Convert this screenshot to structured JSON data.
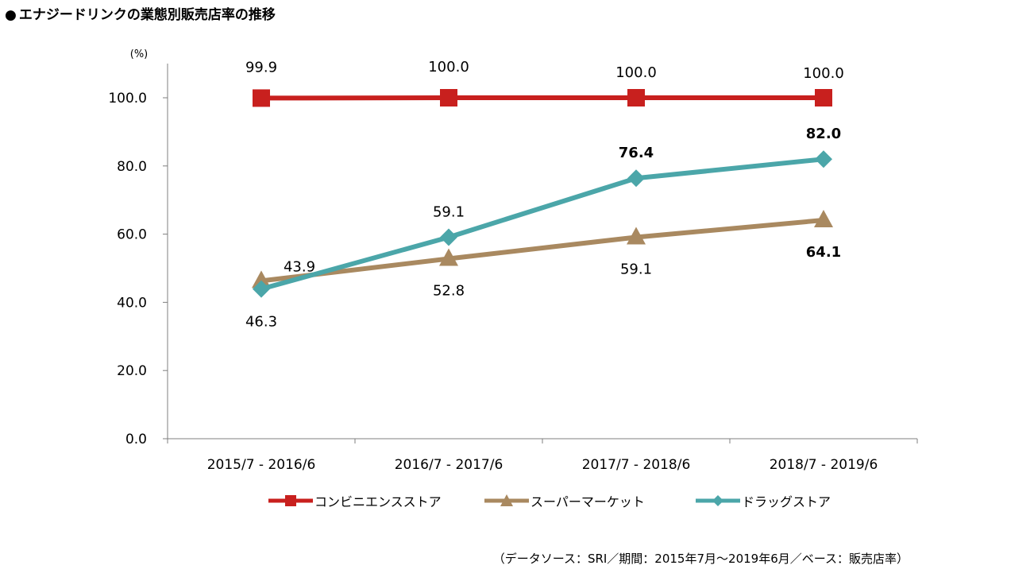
{
  "header": {
    "bullet": "●",
    "title": "エナジードリンクの業態別販売店率の推移"
  },
  "chart_data": {
    "type": "line",
    "title": "エナジードリンクの業態別販売店率の推移",
    "ylabel": "(%)",
    "xlabel": "",
    "ylim": [
      0,
      110
    ],
    "yticks": [
      0,
      20,
      40,
      60,
      80,
      100
    ],
    "ytick_labels": [
      "0.0",
      "20.0",
      "40.0",
      "60.0",
      "80.0",
      "100.0"
    ],
    "categories": [
      "2015/7 - 2016/6",
      "2016/7 - 2017/6",
      "2017/7 - 2018/6",
      "2018/7 - 2019/6"
    ],
    "grid": false,
    "legend_position": "bottom",
    "series": [
      {
        "name": "コンビニエンスストア",
        "values": [
          99.9,
          100.0,
          100.0,
          100.0
        ],
        "labels": [
          "99.9",
          "100.0",
          "100.0",
          "100.0"
        ],
        "bold": [
          false,
          false,
          false,
          false
        ],
        "label_side": [
          "above",
          "above",
          "above",
          "above"
        ],
        "color": "#C8201E",
        "marker": "square"
      },
      {
        "name": "スーパーマーケット",
        "values": [
          46.3,
          52.8,
          59.1,
          64.1
        ],
        "labels": [
          "46.3",
          "52.8",
          "59.1",
          "64.1"
        ],
        "bold": [
          false,
          false,
          false,
          true
        ],
        "label_side": [
          "below",
          "below",
          "below",
          "below"
        ],
        "color": "#A98960",
        "marker": "triangle"
      },
      {
        "name": "ドラッグストア",
        "values": [
          43.9,
          59.1,
          76.4,
          82.0
        ],
        "labels": [
          "43.9",
          "59.1",
          "76.4",
          "82.0"
        ],
        "bold": [
          false,
          false,
          true,
          true
        ],
        "label_side": [
          "right",
          "above",
          "above",
          "above"
        ],
        "color": "#4BA6A9",
        "marker": "diamond"
      }
    ]
  },
  "footer": {
    "source": "（データソース：SRI／期間：2015年7月～2019年6月／ベース：販売店率）"
  }
}
